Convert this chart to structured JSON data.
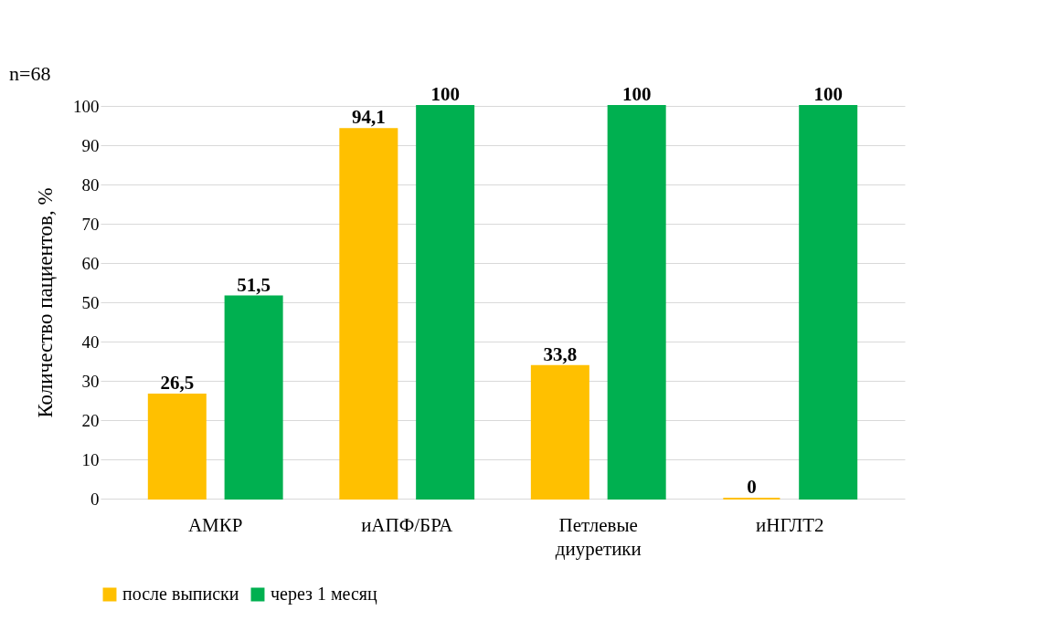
{
  "chart_data": {
    "type": "bar",
    "ylabel": "Количество пациентов, %",
    "categories": [
      "АМКР",
      "иАПФ/БРА",
      "Петлевые диуретики",
      "иНГЛТ2"
    ],
    "series": [
      {
        "name": "после выписки",
        "color": "#ffc000",
        "values": [
          26.5,
          94.1,
          33.8,
          0
        ],
        "value_labels": [
          "26,5",
          "94,1",
          "33,8",
          "0"
        ]
      },
      {
        "name": "через 1 месяц",
        "color": "#00b050",
        "values": [
          51.5,
          100,
          100,
          100
        ],
        "value_labels": [
          "51,5",
          "100",
          "100",
          "100"
        ]
      }
    ],
    "ylim": [
      0,
      100
    ],
    "yticks": [
      0,
      10,
      20,
      30,
      40,
      50,
      60,
      70,
      80,
      90,
      100
    ],
    "grid": "y",
    "legend": "bottom",
    "annotations": [
      "n=68"
    ]
  }
}
